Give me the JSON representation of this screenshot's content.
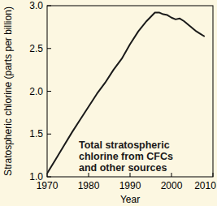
{
  "chart_data": {
    "type": "line",
    "x_label": "Year",
    "y_label": "Stratospheric chlorine (parts per billion)",
    "annotations": [
      "Total stratospheric",
      "chlorine from CFCs",
      "and other sources"
    ],
    "x": [
      1970,
      1972,
      1974,
      1976,
      1978,
      1980,
      1982,
      1984,
      1986,
      1988,
      1990,
      1992,
      1994,
      1995,
      1996,
      1997,
      1998,
      1999,
      2000,
      2001,
      2002,
      2003,
      2004,
      2005,
      2006,
      2007,
      2008
    ],
    "values": [
      1.04,
      1.2,
      1.36,
      1.52,
      1.67,
      1.82,
      1.97,
      2.1,
      2.25,
      2.38,
      2.55,
      2.7,
      2.82,
      2.87,
      2.92,
      2.92,
      2.9,
      2.89,
      2.86,
      2.84,
      2.85,
      2.82,
      2.78,
      2.74,
      2.7,
      2.67,
      2.64
    ],
    "color": "#1a1a1a",
    "xlim": [
      1970,
      2010
    ],
    "xticks": [
      1970,
      1980,
      1990,
      2000,
      2010
    ],
    "ylim": [
      1.0,
      3.0
    ],
    "yticks": [
      {
        "value": 1.0,
        "label": "1.0"
      },
      {
        "value": 1.5,
        "label": "1.5"
      },
      {
        "value": 2.0,
        "label": "2.0"
      },
      {
        "value": 2.5,
        "label": "2.5"
      },
      {
        "value": 3.0,
        "label": "3.0"
      }
    ],
    "grid": false
  }
}
